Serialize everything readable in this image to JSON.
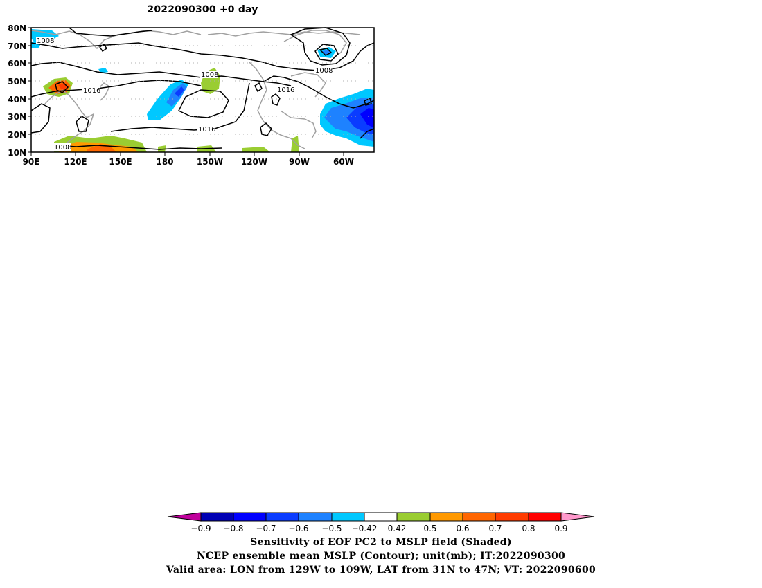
{
  "title": "2022090300  +0 day",
  "map": {
    "lat_ticks": [
      "80N",
      "70N",
      "60N",
      "50N",
      "40N",
      "30N",
      "20N",
      "10N"
    ],
    "lon_ticks": [
      "90E",
      "120E",
      "150E",
      "180",
      "150W",
      "120W",
      "90W",
      "60W"
    ],
    "contour_labels": [
      "1008",
      "1016",
      "1008",
      "1016",
      "1008",
      "1016",
      "1008"
    ],
    "colors": {
      "neg_09": "#c0009c",
      "neg_08": "#0000b4",
      "neg_07": "#0000ff",
      "neg_06": "#0a3cff",
      "neg_05": "#1e82ff",
      "neg_042": "#00c8ff",
      "neutral": "#ffffff",
      "pos_042": "#9acd32",
      "pos_05": "#ff9900",
      "pos_06": "#ff6600",
      "pos_07": "#ff3c00",
      "pos_08": "#ff0000",
      "pos_09": "#ff99cc",
      "coastline": "#a0a0a0",
      "contour": "#000000"
    }
  },
  "colorbar": {
    "labels": [
      "−0.9",
      "−0.8",
      "−0.7",
      "−0.6",
      "−0.5",
      "−0.42",
      "0.42",
      "0.5",
      "0.6",
      "0.7",
      "0.8",
      "0.9"
    ]
  },
  "captions": {
    "line1": "Sensitivity of EOF PC2 to MSLP field (Shaded)",
    "line2": "NCEP ensemble mean MSLP (Contour); unit(mb); IT:2022090300",
    "line3": "Valid area: LON from 129W to 109W, LAT from 31N to 47N; VT: 2022090600"
  }
}
